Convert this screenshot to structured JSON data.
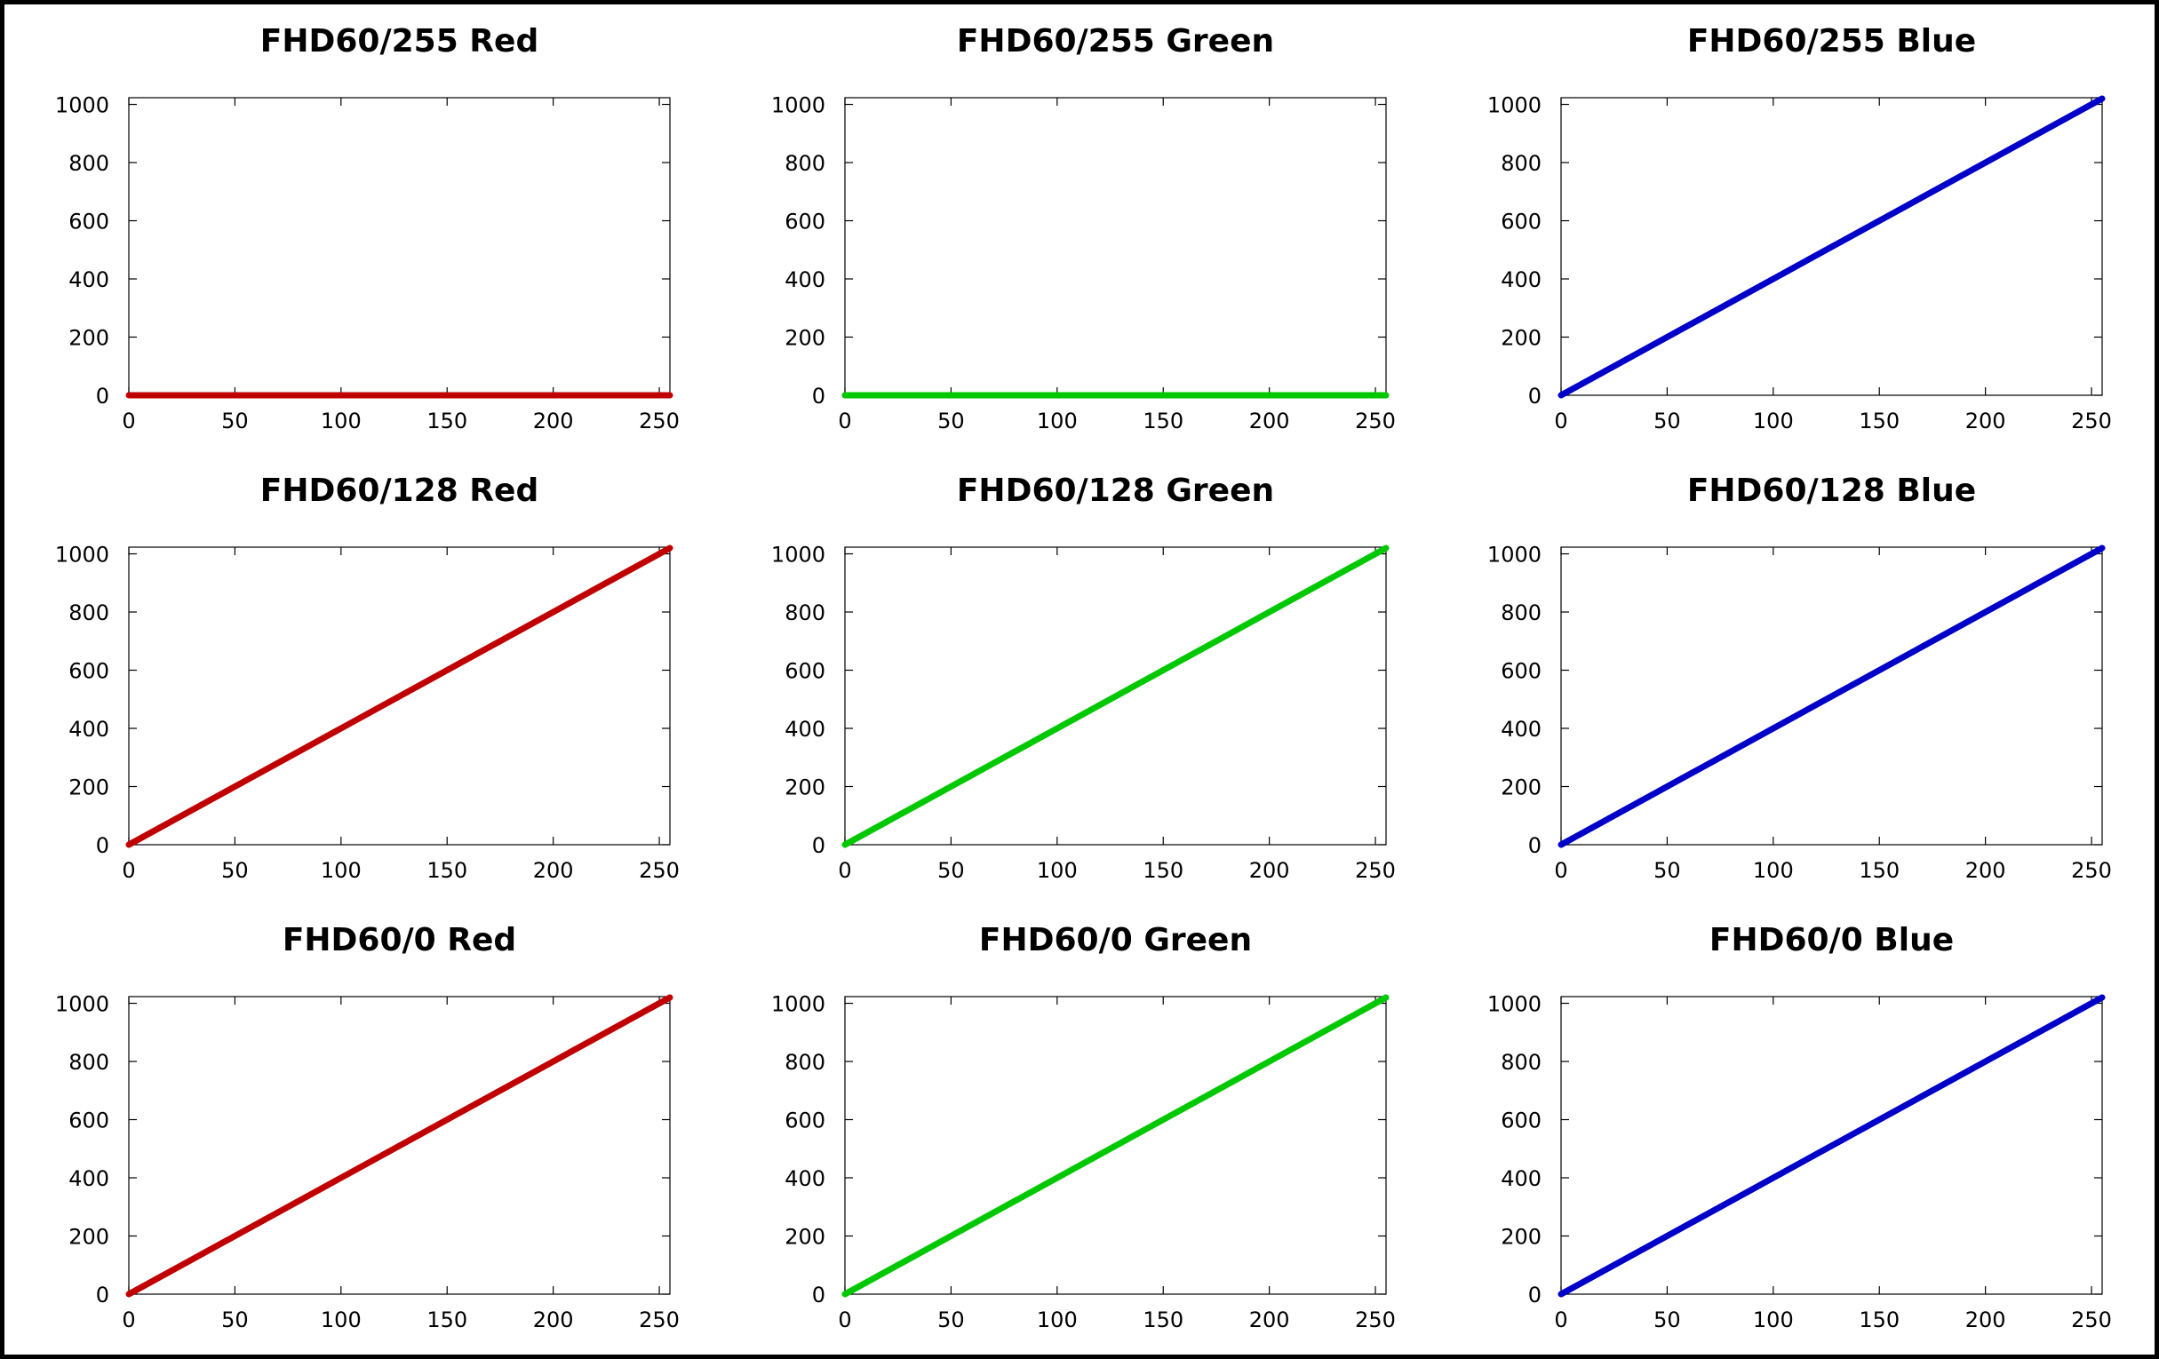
{
  "chart_data": [
    {
      "type": "line",
      "title": "FHD60/255 Red",
      "color": "#c00000",
      "xlim": [
        0,
        255
      ],
      "ylim": [
        0,
        1023
      ],
      "x_ticks": [
        0,
        50,
        100,
        150,
        200,
        250
      ],
      "y_ticks": [
        0,
        200,
        400,
        600,
        800,
        1000
      ],
      "series": [
        {
          "x": [
            0,
            255
          ],
          "y": [
            0,
            0
          ]
        }
      ]
    },
    {
      "type": "line",
      "title": "FHD60/255 Green",
      "color": "#00c800",
      "xlim": [
        0,
        255
      ],
      "ylim": [
        0,
        1023
      ],
      "x_ticks": [
        0,
        50,
        100,
        150,
        200,
        250
      ],
      "y_ticks": [
        0,
        200,
        400,
        600,
        800,
        1000
      ],
      "series": [
        {
          "x": [
            0,
            255
          ],
          "y": [
            0,
            0
          ]
        }
      ]
    },
    {
      "type": "line",
      "title": "FHD60/255 Blue",
      "color": "#0000c8",
      "xlim": [
        0,
        255
      ],
      "ylim": [
        0,
        1023
      ],
      "x_ticks": [
        0,
        50,
        100,
        150,
        200,
        250
      ],
      "y_ticks": [
        0,
        200,
        400,
        600,
        800,
        1000
      ],
      "series": [
        {
          "x": [
            0,
            255
          ],
          "y": [
            0,
            1020
          ]
        }
      ]
    },
    {
      "type": "line",
      "title": "FHD60/128 Red",
      "color": "#c00000",
      "xlim": [
        0,
        255
      ],
      "ylim": [
        0,
        1023
      ],
      "x_ticks": [
        0,
        50,
        100,
        150,
        200,
        250
      ],
      "y_ticks": [
        0,
        200,
        400,
        600,
        800,
        1000
      ],
      "series": [
        {
          "x": [
            0,
            255
          ],
          "y": [
            0,
            1020
          ]
        }
      ]
    },
    {
      "type": "line",
      "title": "FHD60/128 Green",
      "color": "#00c800",
      "xlim": [
        0,
        255
      ],
      "ylim": [
        0,
        1023
      ],
      "x_ticks": [
        0,
        50,
        100,
        150,
        200,
        250
      ],
      "y_ticks": [
        0,
        200,
        400,
        600,
        800,
        1000
      ],
      "series": [
        {
          "x": [
            0,
            255
          ],
          "y": [
            0,
            1020
          ]
        }
      ]
    },
    {
      "type": "line",
      "title": "FHD60/128 Blue",
      "color": "#0000c8",
      "xlim": [
        0,
        255
      ],
      "ylim": [
        0,
        1023
      ],
      "x_ticks": [
        0,
        50,
        100,
        150,
        200,
        250
      ],
      "y_ticks": [
        0,
        200,
        400,
        600,
        800,
        1000
      ],
      "series": [
        {
          "x": [
            0,
            255
          ],
          "y": [
            0,
            1020
          ]
        }
      ]
    },
    {
      "type": "line",
      "title": "FHD60/0 Red",
      "color": "#c00000",
      "xlim": [
        0,
        255
      ],
      "ylim": [
        0,
        1023
      ],
      "x_ticks": [
        0,
        50,
        100,
        150,
        200,
        250
      ],
      "y_ticks": [
        0,
        200,
        400,
        600,
        800,
        1000
      ],
      "series": [
        {
          "x": [
            0,
            255
          ],
          "y": [
            0,
            1020
          ]
        }
      ]
    },
    {
      "type": "line",
      "title": "FHD60/0 Green",
      "color": "#00c800",
      "xlim": [
        0,
        255
      ],
      "ylim": [
        0,
        1023
      ],
      "x_ticks": [
        0,
        50,
        100,
        150,
        200,
        250
      ],
      "y_ticks": [
        0,
        200,
        400,
        600,
        800,
        1000
      ],
      "series": [
        {
          "x": [
            0,
            255
          ],
          "y": [
            0,
            1020
          ]
        }
      ]
    },
    {
      "type": "line",
      "title": "FHD60/0 Blue",
      "color": "#0000c8",
      "xlim": [
        0,
        255
      ],
      "ylim": [
        0,
        1023
      ],
      "x_ticks": [
        0,
        50,
        100,
        150,
        200,
        250
      ],
      "y_ticks": [
        0,
        200,
        400,
        600,
        800,
        1000
      ],
      "series": [
        {
          "x": [
            0,
            255
          ],
          "y": [
            0,
            1020
          ]
        }
      ]
    }
  ]
}
